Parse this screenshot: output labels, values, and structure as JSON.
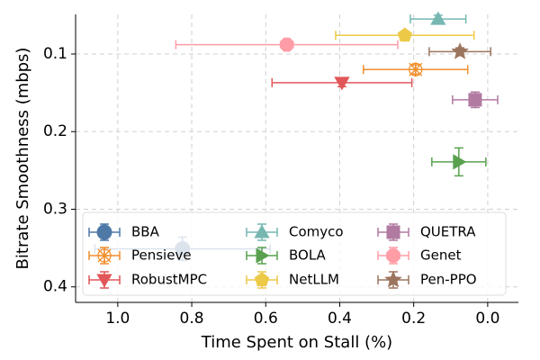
{
  "chart_data": {
    "type": "errorbar-scatter",
    "xlabel": "Time Spent on Stall (%)",
    "ylabel": "Bitrate Smoothness (mbps)",
    "xlim": [
      1.114,
      -0.083
    ],
    "ylim": [
      0.42,
      0.049
    ],
    "xticks": [
      {
        "value": 1.0,
        "label": "1.0"
      },
      0.8,
      0.6,
      0.4,
      0.2,
      {
        "value": 0.0,
        "label": "0.0"
      }
    ],
    "yticks": [
      0.1,
      0.2,
      0.3,
      0.4
    ],
    "grid": true,
    "legend": "lower left",
    "series": [
      {
        "name": "BBA",
        "color": "#4e79a7",
        "marker": "circle",
        "x": 0.825,
        "y": 0.351,
        "xerr": 0.237,
        "yerr": 0.015
      },
      {
        "name": "Pensieve",
        "color": "#f28e2b",
        "marker": "asterisk",
        "x": 0.195,
        "y": 0.12,
        "xerr": 0.141,
        "yerr": 0.006
      },
      {
        "name": "RobustMPC",
        "color": "#e15759",
        "marker": "triangle-down",
        "x": 0.394,
        "y": 0.137,
        "xerr": 0.189,
        "yerr": 0.005
      },
      {
        "name": "Comyco",
        "color": "#76b7b2",
        "marker": "triangle-up",
        "x": 0.134,
        "y": 0.055,
        "xerr": 0.075,
        "yerr": 0.005
      },
      {
        "name": "BOLA",
        "color": "#59a14f",
        "marker": "triangle-right",
        "x": 0.078,
        "y": 0.239,
        "xerr": 0.073,
        "yerr": 0.018
      },
      {
        "name": "NetLLM",
        "color": "#edc948",
        "marker": "pentagon",
        "x": 0.224,
        "y": 0.076,
        "xerr": 0.187,
        "yerr": 0.005
      },
      {
        "name": "QUETRA",
        "color": "#b07aa1",
        "marker": "square",
        "x": 0.034,
        "y": 0.159,
        "xerr": 0.061,
        "yerr": 0.01
      },
      {
        "name": "Genet",
        "color": "#ff9da7",
        "marker": "octagon",
        "x": 0.543,
        "y": 0.088,
        "xerr": 0.3,
        "yerr": 0.005
      },
      {
        "name": "Pen-PPO",
        "color": "#9c755f",
        "marker": "star",
        "x": 0.075,
        "y": 0.097,
        "xerr": 0.083,
        "yerr": 0.005
      }
    ]
  }
}
